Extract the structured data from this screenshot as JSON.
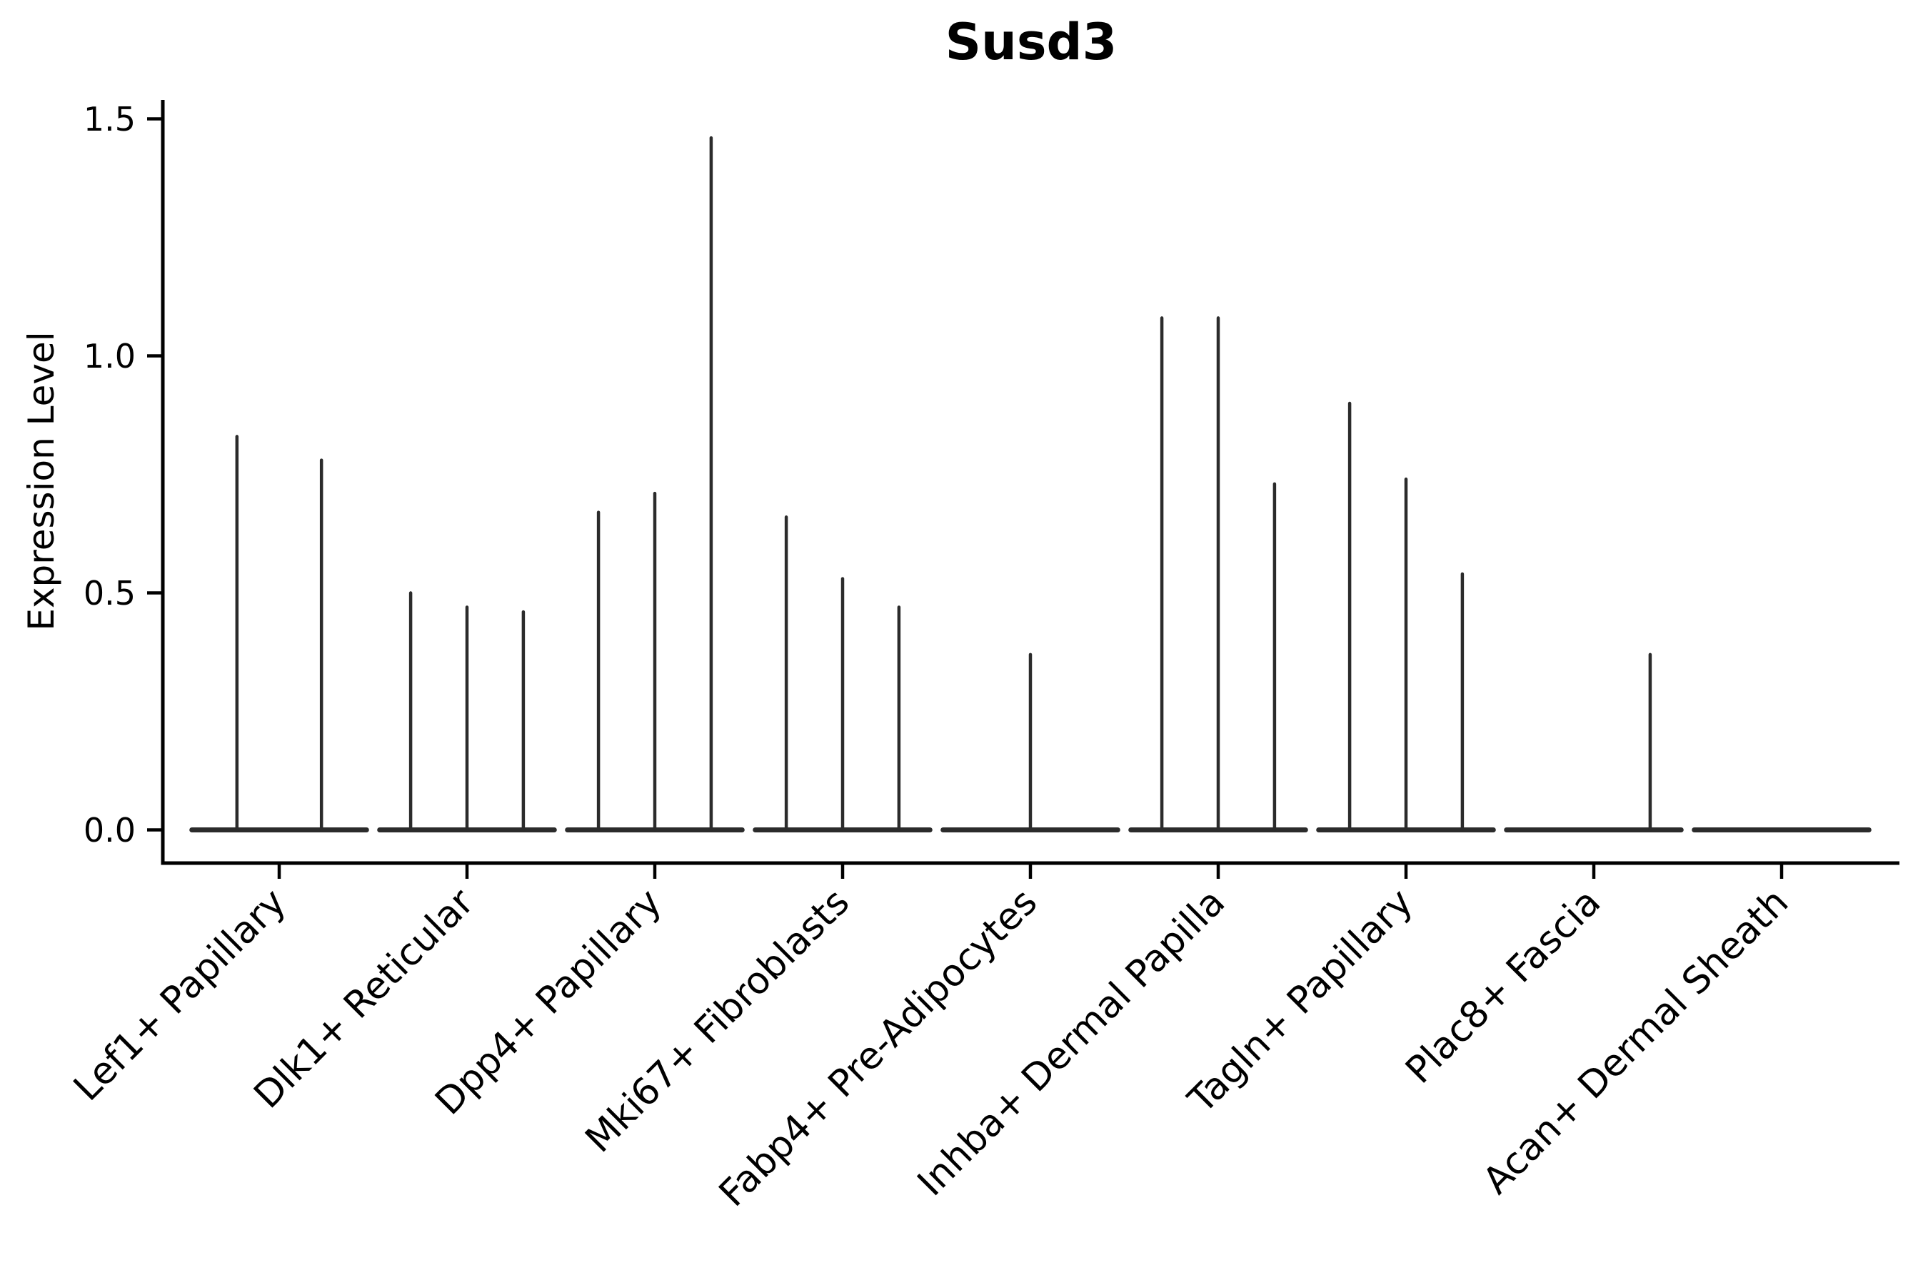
{
  "chart_data": {
    "type": "violin",
    "title": "Susd3",
    "ylabel": "Expression Level",
    "xlabel": "",
    "ylim": [
      -0.07,
      1.54
    ],
    "grid": false,
    "legend": "none",
    "ink_color": "#000000",
    "violin_color": "#2b2b2b",
    "yticks": [
      {
        "label": "0.0",
        "value": 0.0
      },
      {
        "label": "0.5",
        "value": 0.5
      },
      {
        "label": "1.0",
        "value": 1.0
      },
      {
        "label": "1.5",
        "value": 1.5
      }
    ],
    "baseline_halfwidth": 0.465,
    "categories": [
      {
        "label": "Lef1+ Papillary",
        "spikes": [
          {
            "offset": -0.225,
            "value": 0.83
          },
          {
            "offset": 0.225,
            "value": 0.78
          }
        ]
      },
      {
        "label": "Dlk1+ Reticular",
        "spikes": [
          {
            "offset": -0.3,
            "value": 0.5
          },
          {
            "offset": 0.0,
            "value": 0.47
          },
          {
            "offset": 0.3,
            "value": 0.46
          }
        ]
      },
      {
        "label": "Dpp4+ Papillary",
        "spikes": [
          {
            "offset": -0.3,
            "value": 0.67
          },
          {
            "offset": 0.0,
            "value": 0.71
          },
          {
            "offset": 0.3,
            "value": 1.46
          }
        ]
      },
      {
        "label": "Mki67+ Fibroblasts",
        "spikes": [
          {
            "offset": -0.3,
            "value": 0.66
          },
          {
            "offset": 0.0,
            "value": 0.53
          },
          {
            "offset": 0.3,
            "value": 0.47
          }
        ]
      },
      {
        "label": "Fabp4+ Pre-Adipocytes",
        "spikes": [
          {
            "offset": 0.0,
            "value": 0.37
          }
        ]
      },
      {
        "label": "Inhba+ Dermal Papilla",
        "spikes": [
          {
            "offset": -0.3,
            "value": 1.08
          },
          {
            "offset": 0.0,
            "value": 1.08
          },
          {
            "offset": 0.3,
            "value": 0.73
          }
        ]
      },
      {
        "label": "Tagln+ Papillary",
        "spikes": [
          {
            "offset": -0.3,
            "value": 0.9
          },
          {
            "offset": 0.0,
            "value": 0.74
          },
          {
            "offset": 0.3,
            "value": 0.54
          }
        ]
      },
      {
        "label": "Plac8+ Fascia",
        "spikes": [
          {
            "offset": 0.3,
            "value": 0.37
          }
        ]
      },
      {
        "label": "Acan+ Dermal Sheath",
        "spikes": []
      }
    ]
  }
}
